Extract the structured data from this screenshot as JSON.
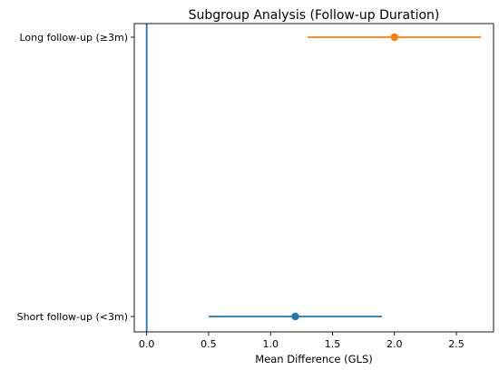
{
  "chart_data": {
    "type": "forest",
    "title": "Subgroup Analysis (Follow-up Duration)",
    "xlabel": "Mean Difference (GLS)",
    "ylabel": "",
    "xlim": [
      -0.1,
      2.8
    ],
    "xticks": [
      {
        "value": 0.0,
        "label": "0.0"
      },
      {
        "value": 0.5,
        "label": "0.5"
      },
      {
        "value": 1.0,
        "label": "1.0"
      },
      {
        "value": 1.5,
        "label": "1.5"
      },
      {
        "value": 2.0,
        "label": "2.0"
      },
      {
        "value": 2.5,
        "label": "2.5"
      }
    ],
    "reference_line": {
      "x": 0,
      "color": "#1f77b4"
    },
    "grid": false,
    "series": [
      {
        "label": "Short follow-up (<3m)",
        "estimate": 1.2,
        "ci_low": 0.5,
        "ci_high": 1.9,
        "color": "#1f77b4"
      },
      {
        "label": "Long follow-up (≥3m)",
        "estimate": 2.0,
        "ci_low": 1.3,
        "ci_high": 2.7,
        "color": "#ff7f0e"
      }
    ]
  }
}
